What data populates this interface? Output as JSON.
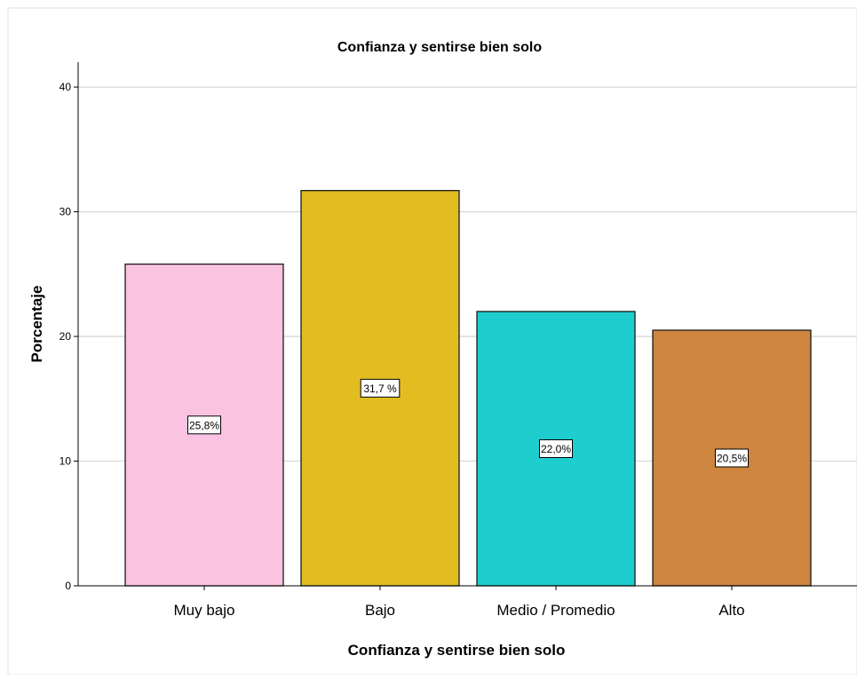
{
  "chart_data": {
    "type": "bar",
    "title": "Confianza y sentirse bien solo",
    "xlabel": "Confianza y sentirse bien solo",
    "ylabel": "Porcentaje",
    "categories": [
      "Muy bajo",
      "Bajo",
      "Medio / Promedio",
      "Alto"
    ],
    "values": [
      25.8,
      31.7,
      22.0,
      20.5
    ],
    "data_labels": [
      "25,8%",
      "31,7 %",
      "22,0%",
      "20,5%"
    ],
    "colors": [
      "#fbc3e2",
      "#e1bd21",
      "#1ecdcd",
      "#cd853f"
    ],
    "ylim": [
      0,
      42
    ],
    "yticks": [
      0,
      10,
      20,
      30,
      40
    ],
    "grid": true,
    "legend": "none"
  }
}
